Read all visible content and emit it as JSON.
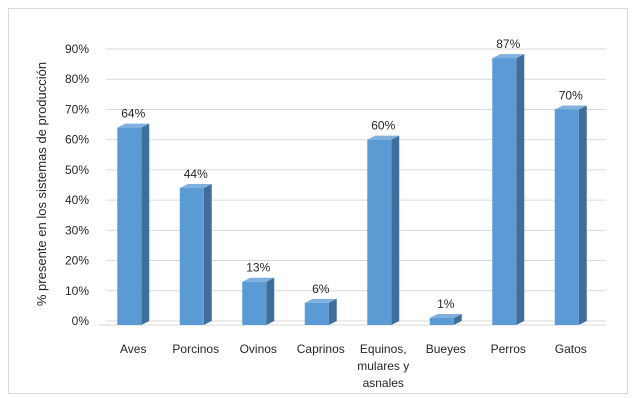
{
  "chart_data": {
    "type": "bar",
    "style": "3d-column",
    "title": "",
    "xlabel": "",
    "ylabel": "%  presente en los sistemas  de producción",
    "ylim": [
      0,
      90
    ],
    "yticks": [
      0,
      10,
      20,
      30,
      40,
      50,
      60,
      70,
      80,
      90
    ],
    "ytick_labels": [
      "0%",
      "10%",
      "20%",
      "30%",
      "40%",
      "50%",
      "60%",
      "70%",
      "80%",
      "90%"
    ],
    "grid": true,
    "legend": "none",
    "categories": [
      [
        "Aves"
      ],
      [
        "Porcinos"
      ],
      [
        "Ovinos"
      ],
      [
        "Caprinos"
      ],
      [
        "Equinos,",
        "mulares y",
        "asnales"
      ],
      [
        "Bueyes"
      ],
      [
        "Perros"
      ],
      [
        "Gatos"
      ]
    ],
    "values": [
      64,
      44,
      13,
      6,
      60,
      1,
      87,
      70
    ],
    "data_labels": [
      "64%",
      "44%",
      "13%",
      "6%",
      "60%",
      "1%",
      "87%",
      "70%"
    ],
    "colors": {
      "front": "#5b9bd5",
      "side": "#3f6e9a",
      "top": "#7fb0de",
      "grid": "#d9d9d9",
      "text": "#262626"
    }
  }
}
